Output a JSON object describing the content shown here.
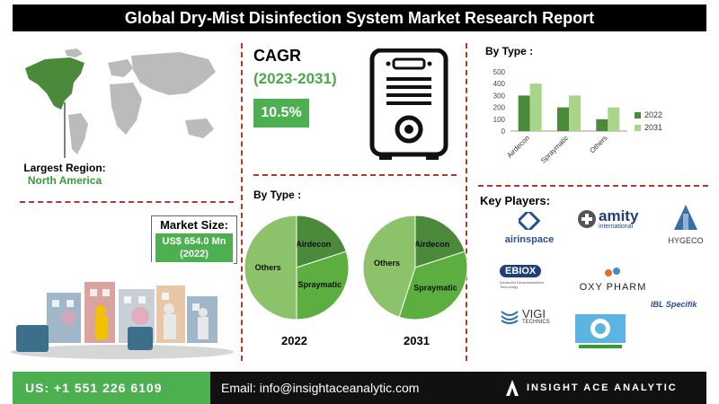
{
  "title": "Global Dry-Mist Disinfection System Market Research Report",
  "region": {
    "label": "Largest Region:",
    "value": "North America"
  },
  "market_size": {
    "label": "Market Size:",
    "value_line1": "US$ 654.0 Mn",
    "value_line2": "(2022)"
  },
  "cagr": {
    "title": "CAGR",
    "years": "(2023-2031)",
    "value": "10.5%"
  },
  "by_type_label": "By Type :",
  "pies": [
    {
      "year": "2022",
      "segments": [
        {
          "name": "Airdecon",
          "value": 20
        },
        {
          "name": "Spraymatic",
          "value": 30
        },
        {
          "name": "Others",
          "value": 50
        }
      ]
    },
    {
      "year": "2031",
      "segments": [
        {
          "name": "Airdecon",
          "value": 20
        },
        {
          "name": "Spraymatic",
          "value": 35
        },
        {
          "name": "Others",
          "value": 45
        }
      ]
    }
  ],
  "chart_data": {
    "type": "bar",
    "categories": [
      "Airdecon",
      "Spraymatic",
      "Others"
    ],
    "series": [
      {
        "name": "2022",
        "values": [
          300,
          200,
          100
        ],
        "color": "#4a8a3a"
      },
      {
        "name": "2031",
        "values": [
          400,
          300,
          200
        ],
        "color": "#a8d58a"
      }
    ],
    "title": "By Type :",
    "ylim": [
      0,
      500
    ],
    "yticks": [
      0,
      100,
      200,
      300,
      400,
      500
    ],
    "legend": "right"
  },
  "key_players_label": "Key Players:",
  "logos": {
    "airinspace": "airinspace",
    "amity": "amity",
    "amity_sub": "international",
    "hygeco": "HYGECO",
    "ebiox": "EBIOX",
    "ebiox_sub": "Advanced Decontamination Technology",
    "oxypharm": "OXY PHARM",
    "vigi": "VIGI",
    "vigi_sub": "TECHNICS",
    "ibl": "IBL Specifik"
  },
  "footer": {
    "phone": "US: +1 551 226 6109",
    "email": "Email: info@insightaceanalytic.com",
    "brand": "INSIGHT ACE ANALYTIC"
  },
  "colors": {
    "accent": "#4caf50",
    "dark_green": "#4a8a3a",
    "light_green": "#a8d58a",
    "divider": "#b03a2e"
  }
}
